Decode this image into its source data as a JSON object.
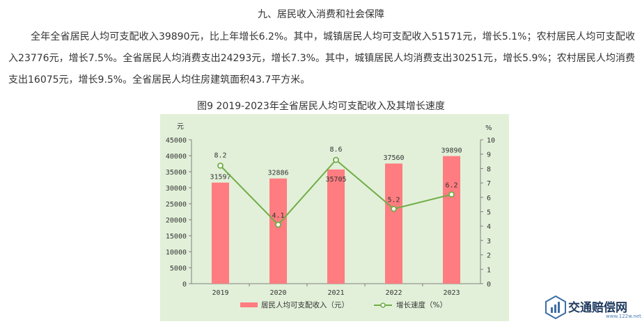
{
  "section_title": "九、居民收入消费和社会保障",
  "paragraph": "全年全省居民人均可支配收入39890元，比上年增长6.2%。其中，城镇居民人均可支配收入51571元，增长5.1%；农村居民人均可支配收入23776元，增长7.5%。全省居民人均消费支出24293元，增长7.3%。其中，城镇居民人均消费支出30251元，增长5.9%；农村居民人均消费支出16075元，增长9.5%。全省居民人均住房建筑面积43.7平方米。",
  "figure_title": "图9 2019-2023年全省居民人均可支配收入及其增长速度",
  "chart_data": {
    "type": "bar",
    "categories": [
      "2019",
      "2020",
      "2021",
      "2022",
      "2023"
    ],
    "series": [
      {
        "name": "居民人均可支配收入（元）",
        "type": "bar",
        "axis": "left",
        "values": [
          31597,
          32886,
          35705,
          37560,
          39890
        ],
        "labels": [
          "31597",
          "32886",
          "35705",
          "37560",
          "39890"
        ]
      },
      {
        "name": "增长速度（%）",
        "type": "line",
        "axis": "right",
        "values": [
          8.2,
          4.1,
          8.6,
          5.2,
          6.2
        ],
        "labels": [
          "8.2",
          "4.1",
          "8.6",
          "5.2",
          "6.2"
        ]
      }
    ],
    "y_left": {
      "unit": "元",
      "min": 0,
      "max": 45000,
      "step": 5000
    },
    "y_right": {
      "unit": "%",
      "min": 0,
      "max": 10,
      "step": 1
    },
    "grid": false,
    "legend": "bottom",
    "colors": {
      "bar": "#ff7c80",
      "line": "#70ad47",
      "marker_fill": "#ffffff",
      "background": "#e2f0d9"
    }
  },
  "watermark": {
    "text": "交通赔偿网",
    "sub": "www.122w.net",
    "color": "#1f3a5f"
  }
}
